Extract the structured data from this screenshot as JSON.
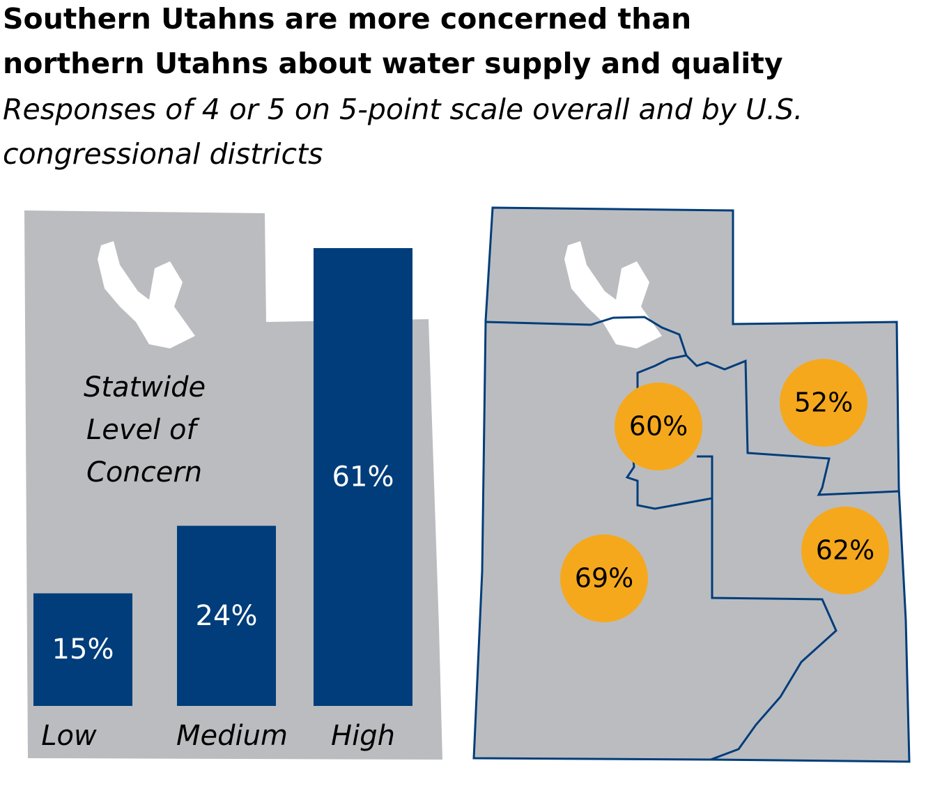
{
  "header": {
    "title": [
      "Southern Utahns are more concerned than",
      "northern Utahns about water supply and quality"
    ],
    "subtitle": [
      "Responses of 4 or 5 on 5-point scale overall and by U.S.",
      "congressional districts"
    ]
  },
  "chart_data": [
    {
      "type": "bar",
      "annotation": [
        "Statwide",
        "Level of",
        "Concern"
      ],
      "categories": [
        "Low",
        "Medium",
        "High"
      ],
      "values": [
        15,
        24,
        61
      ],
      "value_labels": [
        "15%",
        "24%",
        "61%"
      ],
      "color": "#003d7a"
    },
    {
      "type": "map",
      "values": [
        60,
        52,
        62,
        69
      ],
      "value_labels": [
        "60%",
        "52%",
        "62%",
        "69%"
      ],
      "color": "#f5a81c"
    }
  ]
}
